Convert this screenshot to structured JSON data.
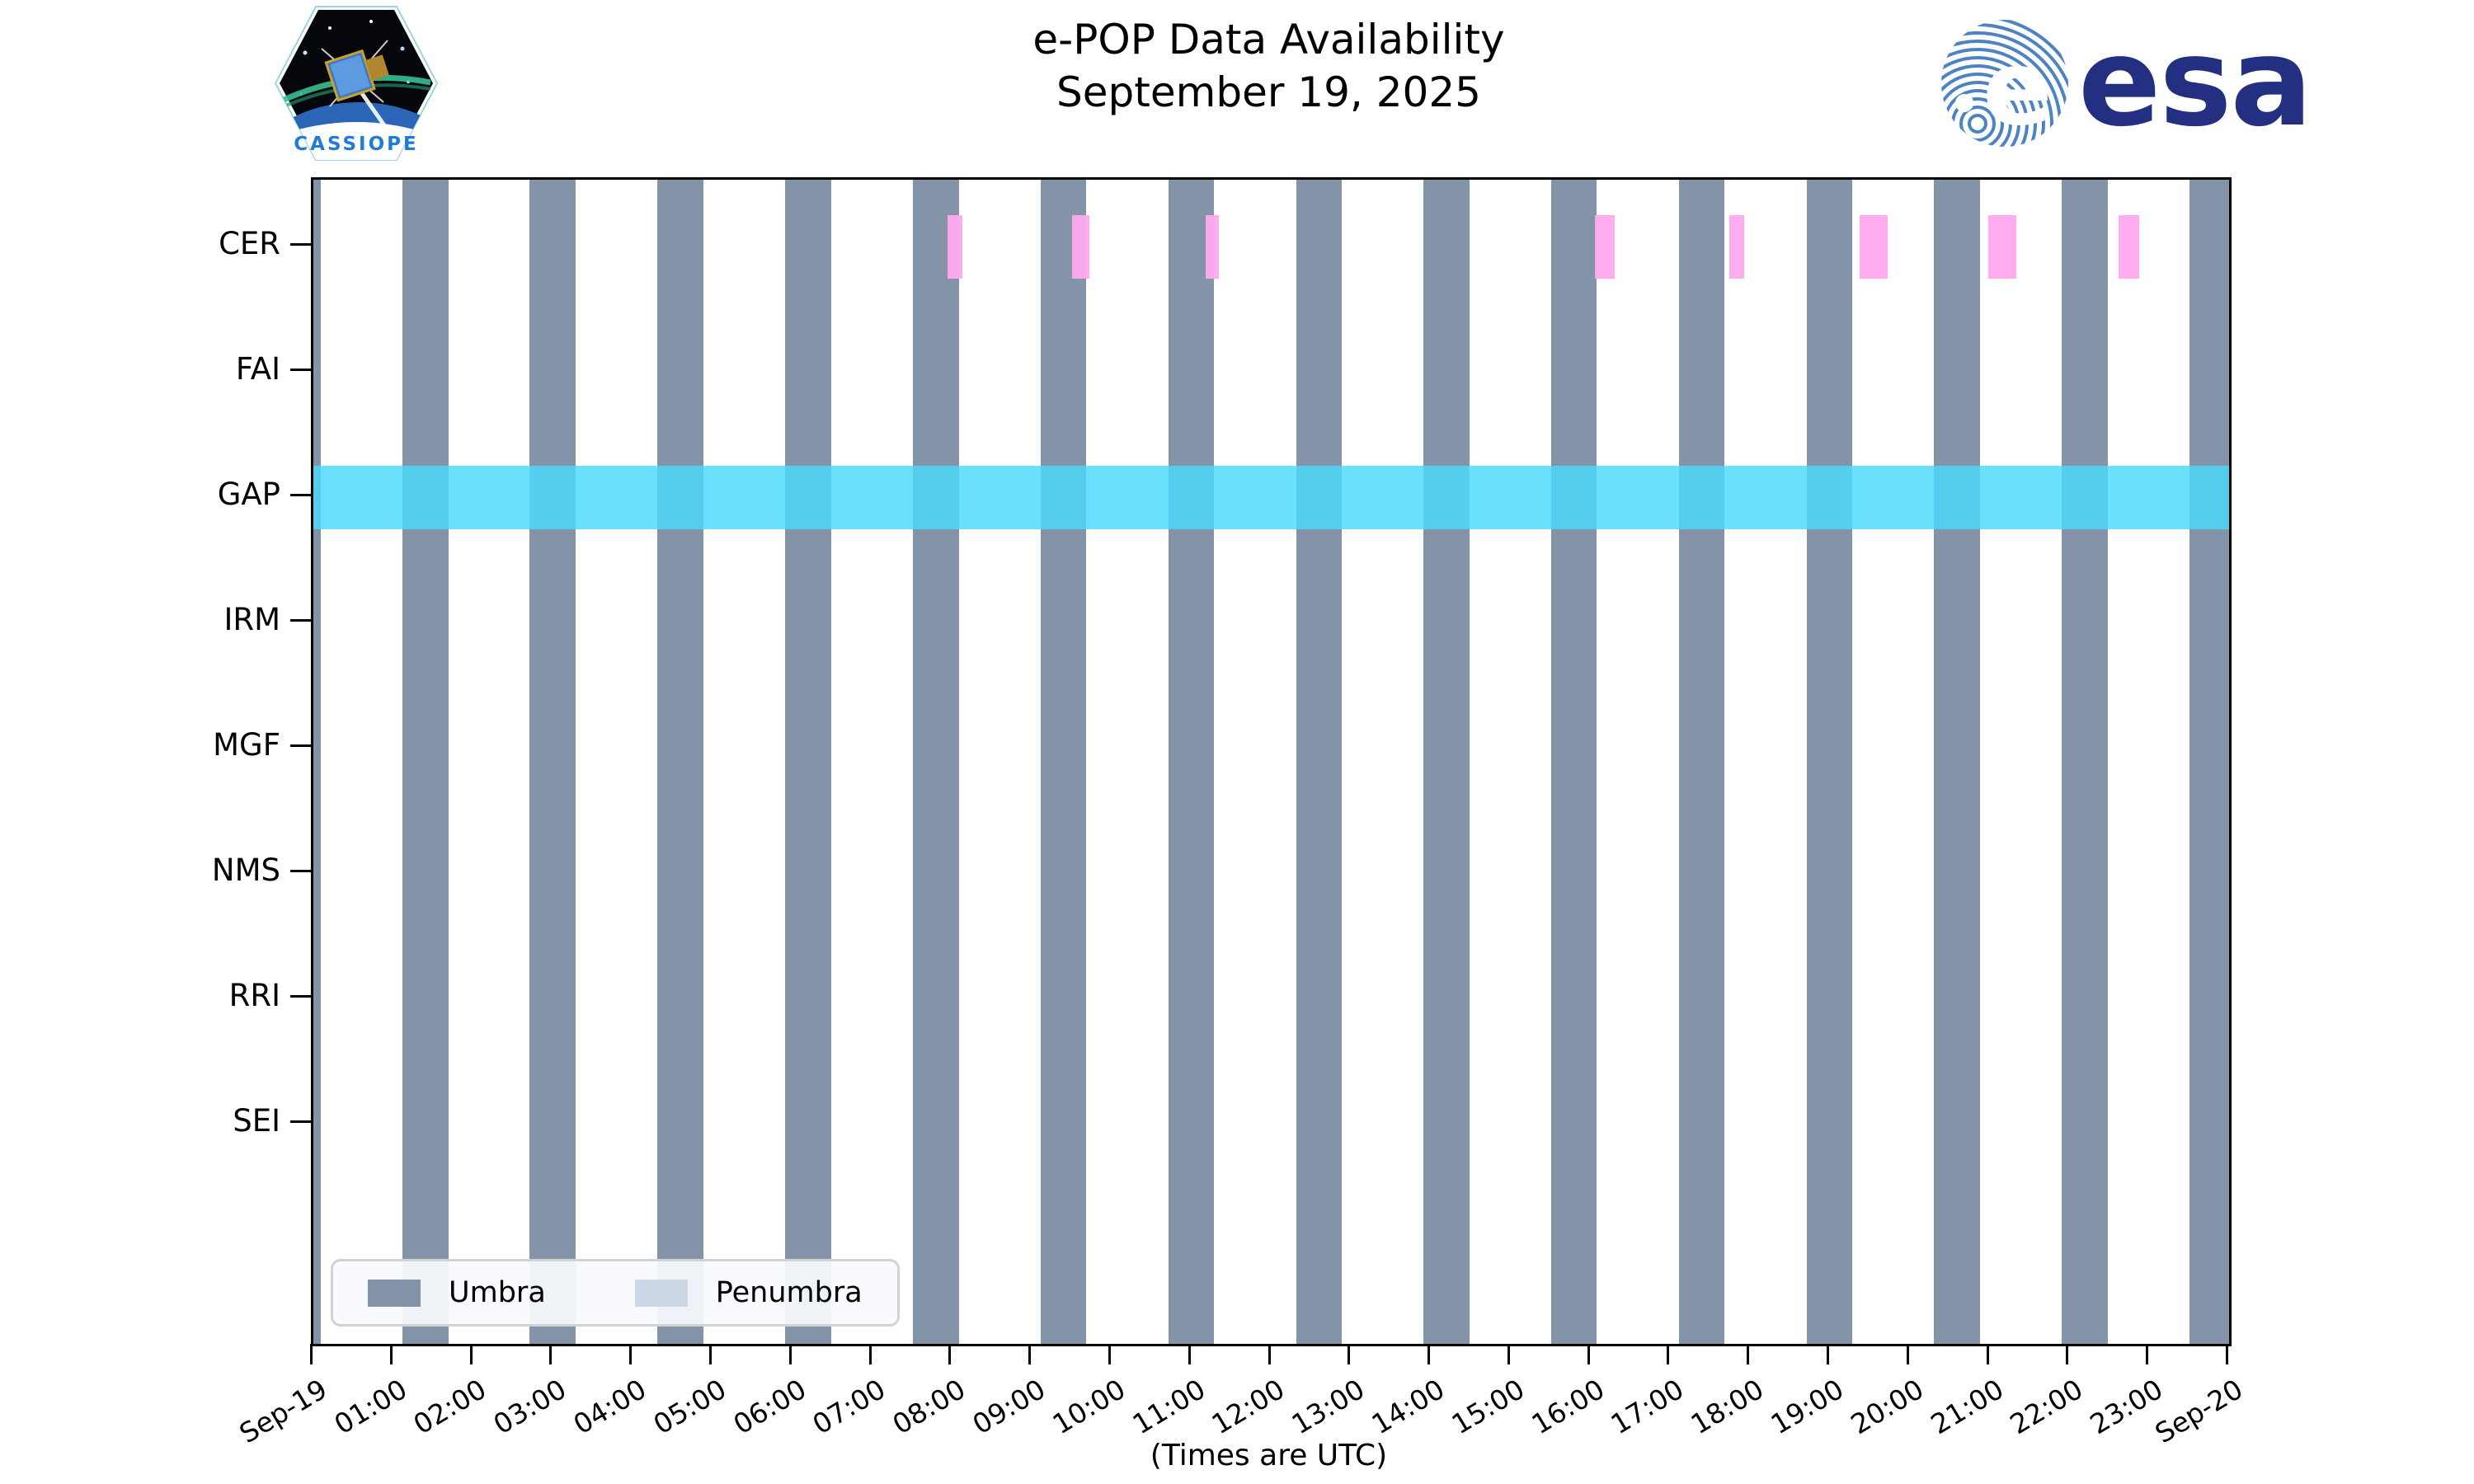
{
  "figure": {
    "title": "e-POP Data Availability",
    "subtitle": "September 19, 2025",
    "x_axis_title": "(Times are UTC)"
  },
  "logos": {
    "cassiope_label": "CASSIOPE",
    "esa_label": "esa"
  },
  "legend": {
    "items": [
      {
        "label": "Umbra",
        "color": "#8494a8"
      },
      {
        "label": "Penumbra",
        "color": "#ccd8e8"
      }
    ]
  },
  "colors": {
    "umbra": "#8494a8",
    "penumbra": "#ccd8e8",
    "cer_pink": "#ffa9ef",
    "gap_cyan": "#4ad9fb",
    "frame": "#000000",
    "esa_blue": "#232f80",
    "cassiope_blue": "#1f7bd4"
  },
  "chart_data": {
    "type": "timeline",
    "title": "e-POP Data Availability",
    "subtitle": "September 19, 2025",
    "xlabel": "(Times are UTC)",
    "x_range_hours": [
      0,
      24
    ],
    "x_tick_interval_hours": 1,
    "x_tick_labels": [
      "Sep-19",
      "01:00",
      "02:00",
      "03:00",
      "04:00",
      "05:00",
      "06:00",
      "07:00",
      "08:00",
      "09:00",
      "10:00",
      "11:00",
      "12:00",
      "13:00",
      "14:00",
      "15:00",
      "16:00",
      "17:00",
      "18:00",
      "19:00",
      "20:00",
      "21:00",
      "22:00",
      "23:00",
      "Sep-20"
    ],
    "rows": [
      "CER",
      "FAI",
      "GAP",
      "IRM",
      "MGF",
      "NMS",
      "RRI",
      "SEI"
    ],
    "umbra_intervals_hours": [
      [
        0.0,
        0.09
      ],
      [
        1.12,
        1.69
      ],
      [
        2.71,
        3.29
      ],
      [
        4.31,
        4.89
      ],
      [
        5.91,
        6.49
      ],
      [
        7.51,
        8.09
      ],
      [
        9.11,
        9.68
      ],
      [
        10.71,
        11.28
      ],
      [
        12.31,
        12.88
      ],
      [
        13.91,
        14.48
      ],
      [
        15.51,
        16.08
      ],
      [
        17.11,
        17.68
      ],
      [
        18.71,
        19.28
      ],
      [
        20.3,
        20.88
      ],
      [
        21.9,
        22.48
      ],
      [
        23.5,
        24.0
      ]
    ],
    "umbra_intervals_utc": [
      "00:00-00:05",
      "01:07-01:41",
      "02:43-03:17",
      "04:19-04:53",
      "05:55-06:29",
      "07:31-08:05",
      "09:07-09:41",
      "10:43-11:17",
      "12:19-12:53",
      "13:55-14:29",
      "15:31-16:05",
      "17:07-17:41",
      "18:43-19:17",
      "20:18-20:53",
      "21:54-22:29",
      "23:30-24:00"
    ],
    "series": [
      {
        "name": "CER availability",
        "row": "CER",
        "color": "#ffa9ef",
        "intervals_hours": [
          [
            7.95,
            8.13
          ],
          [
            9.5,
            9.72
          ],
          [
            11.18,
            11.34
          ],
          [
            16.05,
            16.3
          ],
          [
            17.74,
            17.93
          ],
          [
            19.37,
            19.72
          ],
          [
            20.98,
            21.33
          ],
          [
            22.62,
            22.87
          ]
        ],
        "intervals_utc": [
          "07:57-08:08",
          "09:30-09:43",
          "11:11-11:20",
          "16:03-16:18",
          "17:44-17:56",
          "19:22-19:43",
          "20:59-21:20",
          "22:37-22:52"
        ]
      },
      {
        "name": "GAP availability",
        "row": "GAP",
        "color": "#4ad9fb",
        "intervals_hours": [
          [
            0,
            24
          ]
        ],
        "intervals_utc": [
          "00:00-24:00"
        ]
      }
    ],
    "legend": [
      {
        "label": "Umbra",
        "color": "#8494a8"
      },
      {
        "label": "Penumbra",
        "color": "#ccd8e8"
      }
    ],
    "legend_position": "lower left",
    "grid": false
  }
}
